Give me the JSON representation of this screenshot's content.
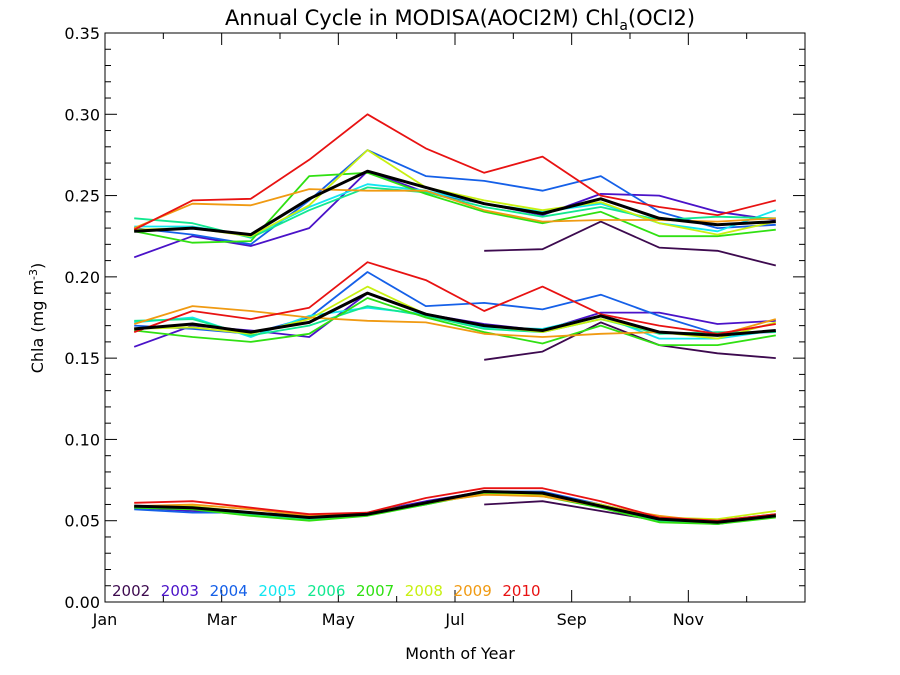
{
  "chart_data": {
    "type": "line",
    "title": {
      "main": "Annual Cycle in MODISA(AOCI2M) Chl",
      "sub": "a",
      "tail": "(OCI2)"
    },
    "xlabel": "Month of Year",
    "ylabel": {
      "pre": "Chla (mg m",
      "sup": "-3",
      "post": ")"
    },
    "x_ticks": [
      "Jan",
      "Mar",
      "May",
      "Jul",
      "Sep",
      "Nov"
    ],
    "y_ticks": [
      "0.00",
      "0.05",
      "0.10",
      "0.15",
      "0.20",
      "0.25",
      "0.30",
      "0.35"
    ],
    "ylim": [
      0,
      0.35
    ],
    "x_months": [
      1,
      2,
      3,
      4,
      5,
      6,
      7,
      8,
      9,
      10,
      11,
      12
    ],
    "legend": [
      "2002",
      "2003",
      "2004",
      "2005",
      "2006",
      "2007",
      "2008",
      "2009",
      "2010"
    ],
    "colors": {
      "2002": "#3d0a4f",
      "2003": "#4a12c8",
      "2004": "#1560e8",
      "2005": "#12e6f0",
      "2006": "#12e890",
      "2007": "#30e012",
      "2008": "#c8f012",
      "2009": "#f09a12",
      "2010": "#e81212",
      "mean": "#000000"
    },
    "series": [
      {
        "name": "2002",
        "upper": [
          null,
          null,
          null,
          null,
          null,
          null,
          0.216,
          0.217,
          0.234,
          0.218,
          0.216,
          0.207
        ],
        "middle": [
          null,
          null,
          null,
          null,
          null,
          null,
          0.149,
          0.154,
          0.172,
          0.158,
          0.153,
          0.15
        ],
        "lower": [
          null,
          null,
          null,
          null,
          null,
          null,
          0.06,
          0.062,
          0.056,
          0.05,
          0.048,
          0.053
        ]
      },
      {
        "name": "2003",
        "upper": [
          0.212,
          0.225,
          0.219,
          0.23,
          0.265,
          0.252,
          0.245,
          0.238,
          0.251,
          0.25,
          0.24,
          0.235
        ],
        "middle": [
          0.157,
          0.17,
          0.167,
          0.163,
          0.19,
          0.177,
          0.171,
          0.167,
          0.178,
          0.178,
          0.171,
          0.173
        ],
        "lower": [
          0.058,
          0.056,
          0.054,
          0.052,
          0.055,
          0.062,
          0.068,
          0.067,
          0.06,
          0.052,
          0.05,
          0.054
        ]
      },
      {
        "name": "2004",
        "upper": [
          0.23,
          0.226,
          0.22,
          0.247,
          0.278,
          0.262,
          0.259,
          0.253,
          0.262,
          0.24,
          0.23,
          0.232
        ],
        "middle": [
          0.17,
          0.168,
          0.165,
          0.175,
          0.203,
          0.182,
          0.184,
          0.18,
          0.189,
          0.176,
          0.165,
          0.166
        ],
        "lower": [
          0.057,
          0.055,
          0.055,
          0.053,
          0.054,
          0.06,
          0.068,
          0.068,
          0.06,
          0.051,
          0.049,
          0.053
        ]
      },
      {
        "name": "2005",
        "upper": [
          0.231,
          0.231,
          0.225,
          0.243,
          0.257,
          0.253,
          0.245,
          0.24,
          0.245,
          0.233,
          0.228,
          0.241
        ],
        "middle": [
          0.172,
          0.175,
          0.163,
          0.176,
          0.181,
          0.177,
          0.169,
          0.168,
          0.176,
          0.162,
          0.162,
          0.167
        ],
        "lower": [
          0.059,
          0.058,
          0.055,
          0.052,
          0.054,
          0.061,
          0.068,
          0.067,
          0.059,
          0.051,
          0.049,
          0.053
        ]
      },
      {
        "name": "2006",
        "upper": [
          0.236,
          0.233,
          0.224,
          0.241,
          0.255,
          0.252,
          0.243,
          0.237,
          0.243,
          0.235,
          0.237,
          0.236
        ],
        "middle": [
          0.173,
          0.174,
          0.164,
          0.17,
          0.182,
          0.176,
          0.168,
          0.166,
          0.174,
          0.165,
          0.166,
          0.166
        ],
        "lower": [
          0.059,
          0.058,
          0.054,
          0.051,
          0.054,
          0.061,
          0.068,
          0.066,
          0.059,
          0.05,
          0.048,
          0.053
        ]
      },
      {
        "name": "2007",
        "upper": [
          0.228,
          0.221,
          0.222,
          0.262,
          0.264,
          0.251,
          0.24,
          0.233,
          0.24,
          0.225,
          0.225,
          0.229
        ],
        "middle": [
          0.167,
          0.163,
          0.16,
          0.165,
          0.187,
          0.175,
          0.166,
          0.159,
          0.17,
          0.158,
          0.158,
          0.164
        ],
        "lower": [
          0.058,
          0.057,
          0.053,
          0.05,
          0.053,
          0.06,
          0.067,
          0.065,
          0.058,
          0.049,
          0.048,
          0.052
        ]
      },
      {
        "name": "2008",
        "upper": [
          0.229,
          0.23,
          0.225,
          0.244,
          0.278,
          0.255,
          0.247,
          0.241,
          0.246,
          0.233,
          0.226,
          0.234
        ],
        "middle": [
          0.168,
          0.169,
          0.165,
          0.174,
          0.194,
          0.177,
          0.17,
          0.166,
          0.174,
          0.166,
          0.162,
          0.172
        ],
        "lower": [
          0.059,
          0.059,
          0.055,
          0.052,
          0.054,
          0.061,
          0.066,
          0.066,
          0.06,
          0.052,
          0.051,
          0.056
        ]
      },
      {
        "name": "2009",
        "upper": [
          0.23,
          0.245,
          0.244,
          0.254,
          0.253,
          0.253,
          0.241,
          0.234,
          0.235,
          0.235,
          0.234,
          0.236
        ],
        "middle": [
          0.171,
          0.182,
          0.179,
          0.175,
          0.173,
          0.172,
          0.165,
          0.163,
          0.165,
          0.166,
          0.164,
          0.174
        ],
        "lower": [
          0.059,
          0.06,
          0.057,
          0.053,
          0.055,
          0.061,
          0.066,
          0.065,
          0.059,
          0.053,
          0.049,
          0.053
        ]
      },
      {
        "name": "2010",
        "upper": [
          0.229,
          0.247,
          0.248,
          0.272,
          0.3,
          0.279,
          0.264,
          0.274,
          0.25,
          0.243,
          0.238,
          0.247
        ],
        "middle": [
          0.166,
          0.179,
          0.174,
          0.181,
          0.209,
          0.198,
          0.179,
          0.194,
          0.177,
          0.17,
          0.165,
          0.171
        ],
        "lower": [
          0.061,
          0.062,
          0.058,
          0.054,
          0.055,
          0.064,
          0.07,
          0.07,
          0.062,
          0.052,
          0.05,
          0.054
        ]
      },
      {
        "name": "mean",
        "upper": [
          0.228,
          0.23,
          0.226,
          0.248,
          0.265,
          0.255,
          0.245,
          0.239,
          0.248,
          0.236,
          0.232,
          0.234
        ],
        "middle": [
          0.168,
          0.171,
          0.166,
          0.172,
          0.19,
          0.177,
          0.17,
          0.167,
          0.176,
          0.166,
          0.164,
          0.167
        ],
        "lower": [
          0.059,
          0.058,
          0.055,
          0.052,
          0.054,
          0.061,
          0.068,
          0.067,
          0.059,
          0.051,
          0.049,
          0.053
        ]
      }
    ]
  }
}
